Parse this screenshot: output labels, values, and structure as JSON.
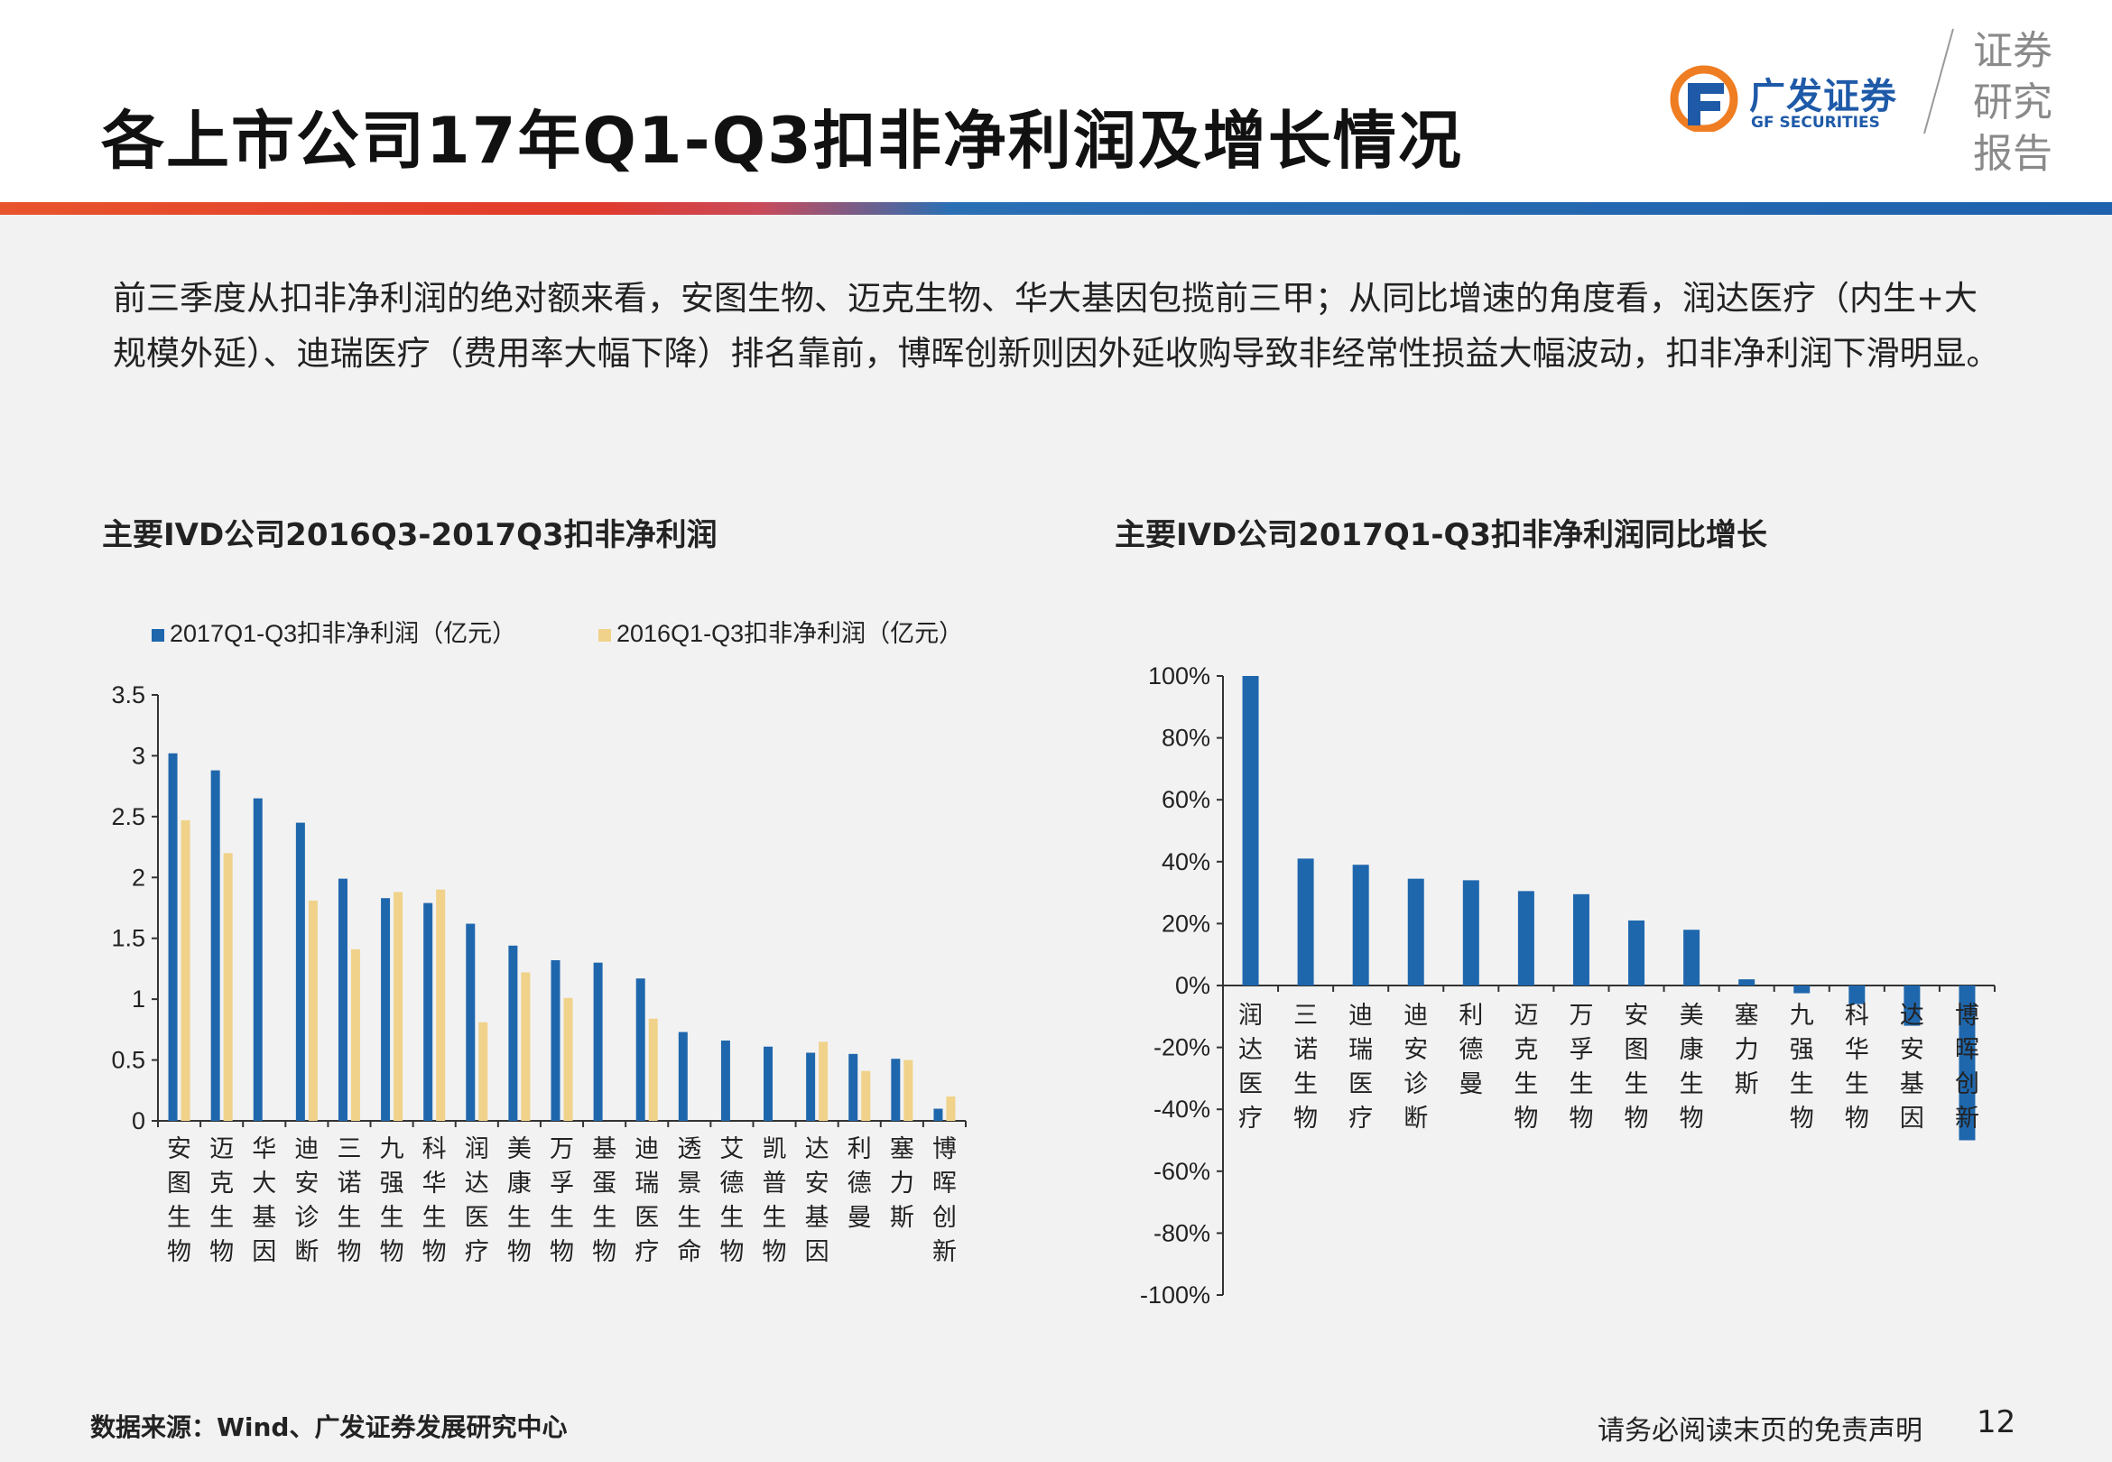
{
  "page": {
    "title": "各上市公司17年Q1-Q3扣非净利润及增长情况",
    "logo_cn": "广发证券",
    "logo_en": "GF SECURITIES",
    "report_tag": [
      "证券",
      "研究",
      "报告"
    ],
    "description": "前三季度从扣非净利润的绝对额来看，安图生物、迈克生物、华大基因包揽前三甲；从同比增速的角度看，润达医疗（内生+大规模外延）、迪瑞医疗（费用率大幅下降）排名靠前，博晖创新则因外延收购导致非经常性损益大幅波动，扣非净利润下滑明显。",
    "source": "数据来源：Wind、广发证券发展研究中心",
    "disclaimer": "请务必阅读末页的免责声明",
    "page_number": "12"
  },
  "colors": {
    "stripe_left": "#e8542c",
    "stripe_right": "#1e61ad",
    "series_2017": "#1f67ad",
    "series_2016": "#f0d28a",
    "logo_blue": "#1e5aa8",
    "logo_orange": "#ef7d22"
  },
  "chart_data": [
    {
      "type": "bar",
      "title": "主要IVD公司2016Q3-2017Q3扣非净利润",
      "categories": [
        "安图生物",
        "迈克生物",
        "华大基因",
        "迪安诊断",
        "三诺生物",
        "九强生物",
        "科华生物",
        "润达医疗",
        "美康生物",
        "万孚生物",
        "基蛋生物",
        "迪瑞医疗",
        "透景生命",
        "艾德生物",
        "凯普生物",
        "达安基因",
        "利德曼",
        "塞力斯",
        "博晖创新"
      ],
      "series": [
        {
          "name": "2017Q1-Q3扣非净利润（亿元）",
          "values": [
            3.02,
            2.88,
            2.65,
            2.45,
            1.99,
            1.83,
            1.79,
            1.62,
            1.44,
            1.32,
            1.3,
            1.17,
            0.73,
            0.66,
            0.61,
            0.56,
            0.55,
            0.51,
            0.1
          ]
        },
        {
          "name": "2016Q1-Q3扣非净利润（亿元）",
          "values": [
            2.47,
            2.2,
            null,
            1.81,
            1.41,
            1.88,
            1.9,
            0.81,
            1.22,
            1.01,
            null,
            0.84,
            null,
            null,
            null,
            0.65,
            0.41,
            0.5,
            0.2
          ]
        }
      ],
      "ylim": [
        0,
        3.5
      ],
      "yticks": [
        "0",
        "0.5",
        "1",
        "1.5",
        "2",
        "2.5",
        "3",
        "3.5"
      ],
      "legend": "top",
      "grid": false
    },
    {
      "type": "bar",
      "title": "主要IVD公司2017Q1-Q3扣非净利润同比增长",
      "categories": [
        "润达医疗",
        "三诺生物",
        "迪瑞医疗",
        "迪安诊断",
        "利德曼",
        "迈克生物",
        "万孚生物",
        "安图生物",
        "美康生物",
        "塞力斯",
        "九强生物",
        "科华生物",
        "达安基因",
        "博晖创新"
      ],
      "values": [
        100,
        41,
        39,
        34.5,
        34,
        30.5,
        29.5,
        21,
        18,
        2,
        -2.5,
        -6,
        -13,
        -50
      ],
      "ylim": [
        -100,
        100
      ],
      "yticks": [
        "-100%",
        "-80%",
        "-60%",
        "-40%",
        "-20%",
        "0%",
        "20%",
        "40%",
        "60%",
        "80%",
        "100%"
      ],
      "legend": "none",
      "grid": false
    }
  ]
}
